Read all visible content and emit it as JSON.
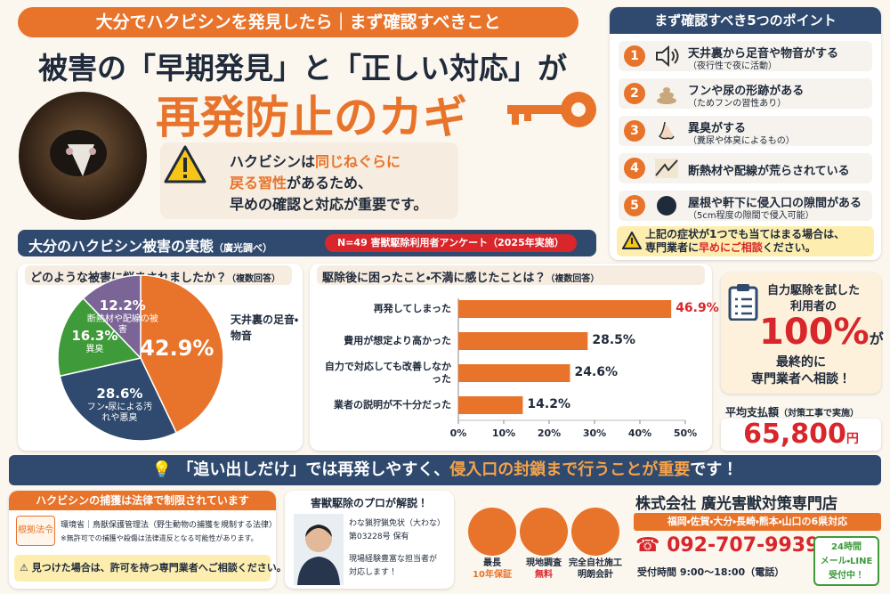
{
  "header": {
    "banner": "大分でハクビシンを発見したら｜まず確認すべきこと",
    "title_line1": "被害の「早期発見」と「正しい対応」が",
    "title_line2": "再発防止のカギ"
  },
  "warning": [
    "ハクビシンは",
    "同じねぐらに",
    "戻る習性",
    "があるため、",
    "早めの確認と対応が重要です。"
  ],
  "points": {
    "title": "まず確認すべき5つのポイント",
    "items": [
      {
        "number": 1,
        "title": "天井裏から足音や物音がする",
        "note": "（夜行性で夜に活動）"
      },
      {
        "number": 2,
        "title": "フンや尿の形跡がある",
        "note": "（ためフンの習性あり）"
      },
      {
        "number": 3,
        "title": "異臭がする",
        "note": "（糞尿や体臭によるもの）"
      },
      {
        "number": 4,
        "title": "断熱材や配線が荒らされている"
      },
      {
        "number": 5,
        "title": "屋根や軒下に侵入口の隙間がある",
        "note": "（5cm程度の隙間で侵入可能）"
      }
    ],
    "notice": [
      "上記の症状が1つでも当てはまる場合は、",
      "専門業者に",
      "早めにご相談",
      "ください。"
    ]
  },
  "survey": {
    "title": "大分のハクビシン被害の実態",
    "source": "（廣光調べ）",
    "sample": "N=49 害獣駆除利用者アンケート（2025年実施）"
  },
  "chart_data": [
    {
      "type": "pie",
      "title": "どのような被害に悩まされましたか？",
      "subtitle": "（複数回答）",
      "categories": [
        "天井裏の足音・物音",
        "フン・尿による汚れや悪臭",
        "異臭",
        "断熱材や配線の被害"
      ],
      "values": [
        42.9,
        28.6,
        16.3,
        12.2
      ],
      "value_labels": [
        "42.9%",
        "28.6%",
        "16.3%",
        "12.2%"
      ],
      "colors": [
        "#e8732a",
        "#2f4a6e",
        "#3f9a3a",
        "#7b6596"
      ]
    },
    {
      "type": "bar",
      "orientation": "horizontal",
      "title": "駆除後に困ったこと・不満に感じたことは？",
      "subtitle": "（複数回答）",
      "categories": [
        "再発してしまった",
        "費用が想定より高かった",
        "自力で対応しても改善しなかった",
        "業者の説明が不十分だった"
      ],
      "values": [
        46.9,
        28.5,
        24.6,
        14.2
      ],
      "value_labels": [
        "46.9%",
        "28.5%",
        "24.6%",
        "14.2%"
      ],
      "color": "#e8732a",
      "xlim": [
        0,
        50
      ],
      "xticks": [
        {
          "value": 0,
          "label": "0%"
        },
        {
          "value": 10,
          "label": "10%"
        },
        {
          "value": 20,
          "label": "20%"
        },
        {
          "value": 30,
          "label": "30%"
        },
        {
          "value": 40,
          "label": "40%"
        },
        {
          "value": 50,
          "label": "50%"
        }
      ]
    }
  ],
  "stats": {
    "lead_1": "自力駆除を試した",
    "lead_2": "利用者の",
    "highlight": "100%",
    "suffix": "が",
    "conclusion_1": "最終的に",
    "conclusion_2": "専門業者へ相談！",
    "payment_label": "平均支払額",
    "payment_note": "（対策工事で実施）",
    "payment": "65,800",
    "payment_unit": "円"
  },
  "message": [
    "「追い出しだけ」では再発しやすく、",
    "侵入口の封鎖まで行うことが重要",
    "です！"
  ],
  "law": {
    "title": "ハクビシンの捕獲は法律で制限されています",
    "tag": "根拠法令",
    "law": "環境省｜鳥獣保護管理法（野生動物の捕獲を規制する法律）",
    "note": "※無許可での捕獲や殺傷は法律違反となる可能性があります。",
    "advice": "見つけた場合は、許可を持つ専門業者へご相談ください。"
  },
  "pro": {
    "title": "害獣駆除のプロが解説！",
    "license": "わな猟狩猟免状（大わな）",
    "license_no": "第03228号 保有",
    "message_1": "現場経験豊富な担当者が",
    "message_2": "対応します！"
  },
  "features": [
    [
      "最長",
      "10年保証"
    ],
    [
      "現地調査",
      "無料"
    ],
    [
      "完全自社施工",
      "明朗会計"
    ]
  ],
  "company": {
    "name": "株式会社 廣光害獣対策専門店",
    "area": "福岡・佐賀・大分・長崎・熊本・山口の6県対応",
    "phone": "092-707-9939",
    "hours": "受付時間 9:00～18:00（電話）",
    "online": [
      "24時間",
      "メール・LINE",
      "受付中！"
    ]
  }
}
